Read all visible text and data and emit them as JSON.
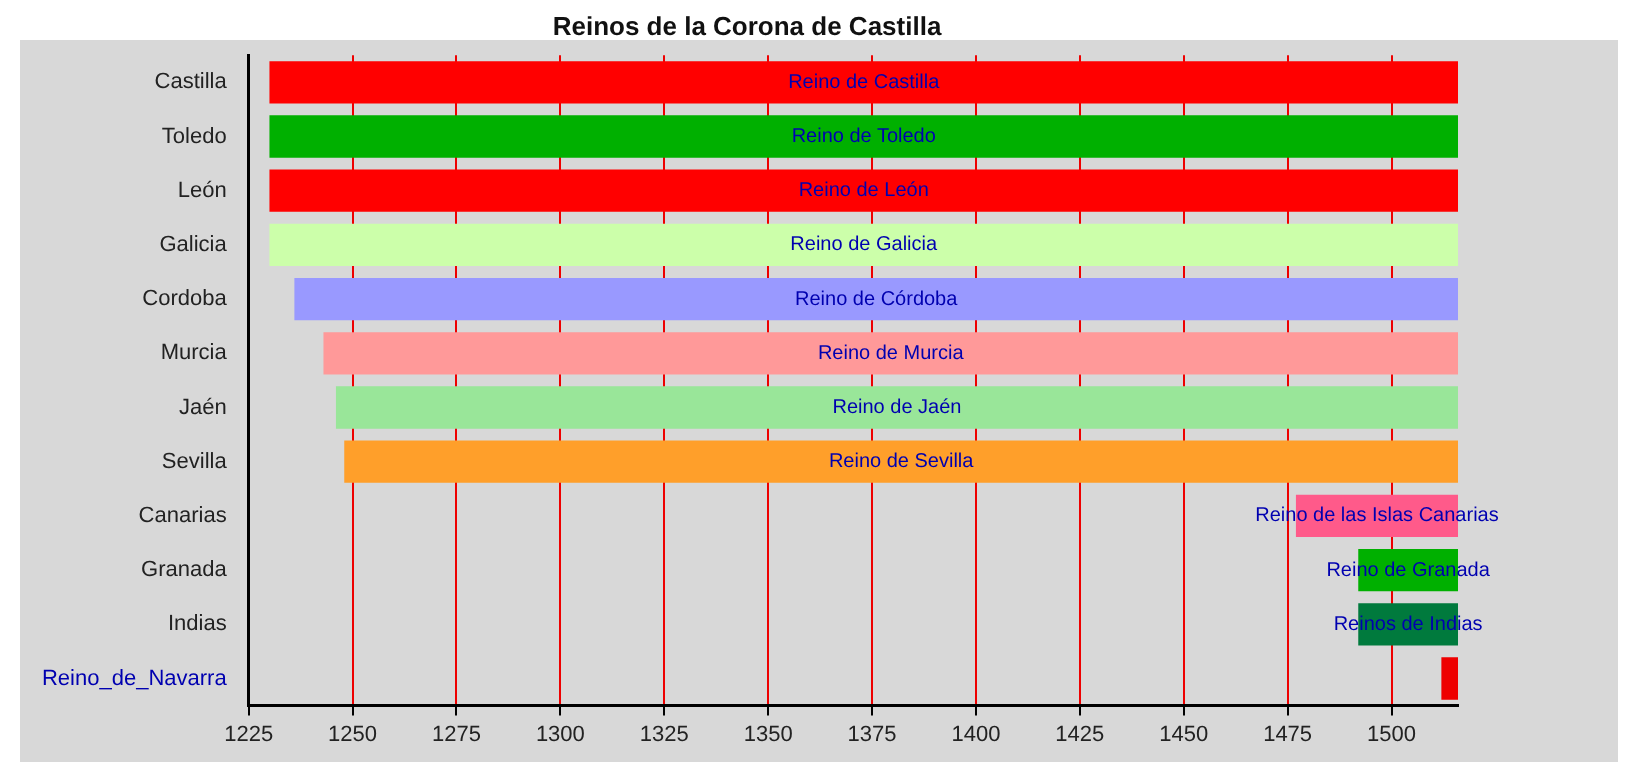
{
  "chart_data": {
    "type": "bar",
    "orientation": "horizontal",
    "title": "Reinos de la Corona de Castilla",
    "categories": [
      "Castilla",
      "Toledo",
      "León",
      "Galicia",
      "Cordoba",
      "Murcia",
      "Jaén",
      "Sevilla",
      "Canarias",
      "Granada",
      "Indias",
      "Reino_de_Navarra"
    ],
    "base": [
      1230,
      1230,
      1230,
      1230,
      1236,
      1243,
      1246,
      1248,
      1477,
      1492,
      1492,
      1512
    ],
    "values": [
      286,
      286,
      286,
      286,
      280,
      273,
      270,
      268,
      39,
      24,
      24,
      4
    ],
    "colors": [
      "#ff0000",
      "#00b000",
      "#ff0000",
      "#ccffaa",
      "#9999ff",
      "#ff9999",
      "#99e699",
      "#ff9f2a",
      "#ff5a8a",
      "#00b000",
      "#007a3d",
      "#ee0000"
    ],
    "value_labels": [
      "Reino de Castilla",
      "Reino de Toledo",
      "Reino de León",
      "Reino de Galicia",
      "Reino de Córdoba",
      "Reino de Murcia",
      "Reino de Jaén",
      "Reino de Sevilla",
      "Reino de las Islas Canarias",
      "Reino de Granada",
      "Reinos de Indias",
      null
    ],
    "xlim": [
      1225,
      1516
    ],
    "xticks": [
      1225,
      1250,
      1275,
      1300,
      1325,
      1350,
      1375,
      1400,
      1425,
      1450,
      1475,
      1500
    ],
    "grid": "x",
    "legend": false
  }
}
